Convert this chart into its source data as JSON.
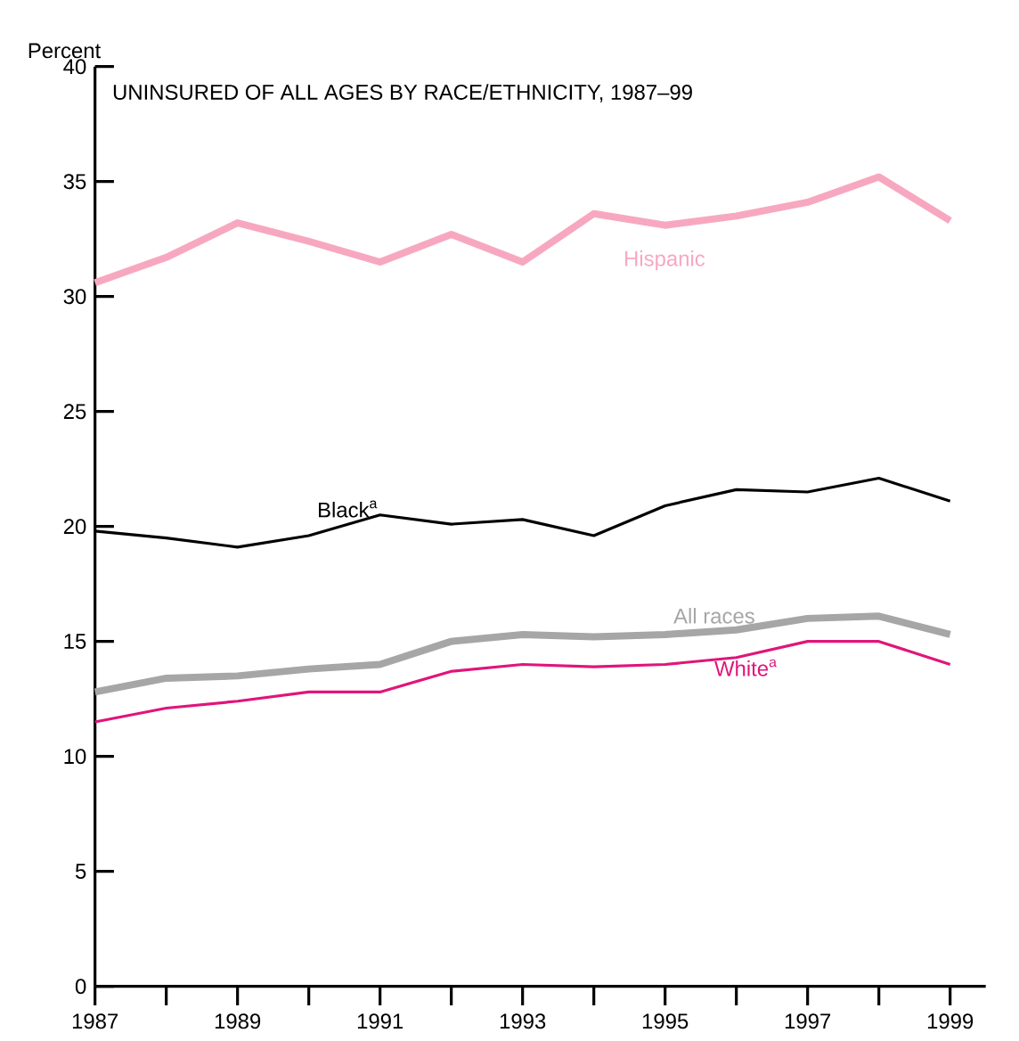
{
  "chart_data": {
    "type": "line",
    "title": "UNINSURED OF ALL AGES BY RACE/ETHNICITY, 1987–99",
    "ylabel": "Percent",
    "x": [
      1987,
      1988,
      1989,
      1990,
      1991,
      1992,
      1993,
      1994,
      1995,
      1996,
      1997,
      1998,
      1999
    ],
    "xlim": [
      1987,
      1999.5
    ],
    "ylim": [
      0,
      40
    ],
    "xticks": [
      1987,
      {
        "value": 1988,
        "label": null
      },
      1989,
      {
        "value": 1990,
        "label": null
      },
      1991,
      {
        "value": 1992,
        "label": null
      },
      1993,
      {
        "value": 1994,
        "label": null
      },
      1995,
      {
        "value": 1996,
        "label": null
      },
      1997,
      {
        "value": 1998,
        "label": null
      },
      1999
    ],
    "yticks": [
      0,
      5,
      10,
      15,
      20,
      25,
      30,
      35,
      40
    ],
    "grid": false,
    "marker": "none",
    "line_style": "solid",
    "series": [
      {
        "name": "Hispanic",
        "color": "#f7a8c0",
        "values": [
          30.6,
          31.7,
          33.2,
          32.4,
          31.5,
          32.7,
          31.5,
          33.6,
          33.1,
          33.5,
          34.1,
          35.2,
          33.3
        ]
      },
      {
        "name": "Black$^{a}$",
        "color": "#000000",
        "values": [
          19.8,
          19.5,
          19.1,
          19.6,
          20.5,
          20.1,
          20.3,
          19.6,
          20.9,
          21.6,
          21.5,
          22.1,
          21.1
        ]
      },
      {
        "name": "All races",
        "color": "#a6a6a6",
        "values": [
          12.8,
          13.4,
          13.5,
          13.8,
          14.0,
          15.0,
          15.3,
          15.2,
          15.3,
          15.5,
          16.0,
          16.1,
          15.3
        ]
      },
      {
        "name": "White$^{a}$",
        "color": "#e0157a",
        "values": [
          11.5,
          12.1,
          12.4,
          12.8,
          12.8,
          13.7,
          14.0,
          13.9,
          14.0,
          14.3,
          15.0,
          15.0,
          14.0
        ]
      }
    ]
  }
}
